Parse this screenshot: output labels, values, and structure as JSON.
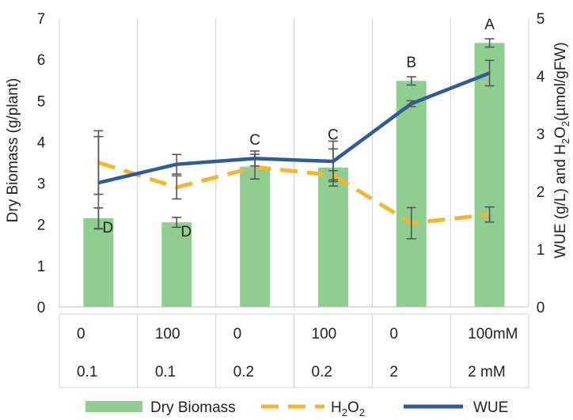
{
  "chart_data": {
    "type": "bar",
    "categories": [
      "0|0.1",
      "100|0.1",
      "0|0.2",
      "100|0.2",
      "0|2",
      "100mM|2  mM"
    ],
    "category_rows": [
      [
        "0",
        "100",
        "0",
        "100",
        "0",
        "100mM"
      ],
      [
        "0.1",
        "0.1",
        "0.2",
        "0.2",
        "2",
        "2  mM"
      ]
    ],
    "ylabel": "Dry Biomass (g/plant)",
    "y2label_parts": [
      "WUE (g/L) and H",
      "2",
      "O",
      "2",
      "(µmol/gFW)"
    ],
    "ylim": [
      0,
      7
    ],
    "y2lim": [
      0,
      5
    ],
    "y_ticks": [
      0,
      1,
      2,
      3,
      4,
      5,
      6,
      7
    ],
    "y2_ticks": [
      0,
      1,
      2,
      3,
      4,
      5
    ],
    "grid": "vertical",
    "legend_position": "bottom",
    "series": [
      {
        "name": "Dry Biomass",
        "type": "bar",
        "axis": "left",
        "color": "#8fce8f",
        "values": [
          2.15,
          2.05,
          3.4,
          3.38,
          5.48,
          6.4
        ],
        "errors": [
          0.25,
          0.12,
          0.3,
          0.45,
          0.1,
          0.1
        ],
        "letters": [
          "D",
          "D",
          "C",
          "C",
          "B",
          "A"
        ]
      },
      {
        "name": "H2O2",
        "legend_parts": [
          "H",
          "2",
          "O",
          "2"
        ],
        "type": "line",
        "style": "dashed",
        "axis": "right",
        "color": "#f5b531",
        "values": [
          2.5,
          2.07,
          2.42,
          2.28,
          1.45,
          1.6
        ],
        "errors": [
          0.55,
          0.2,
          0.0,
          0.08,
          0.27,
          0.13
        ]
      },
      {
        "name": "WUE",
        "type": "line",
        "style": "solid",
        "axis": "right",
        "color": "#2e5b9a",
        "values": [
          2.15,
          2.47,
          2.57,
          2.52,
          3.52,
          4.05
        ],
        "errors": [
          0.8,
          0.17,
          0.13,
          0.35,
          0.05,
          0.22
        ]
      }
    ]
  }
}
